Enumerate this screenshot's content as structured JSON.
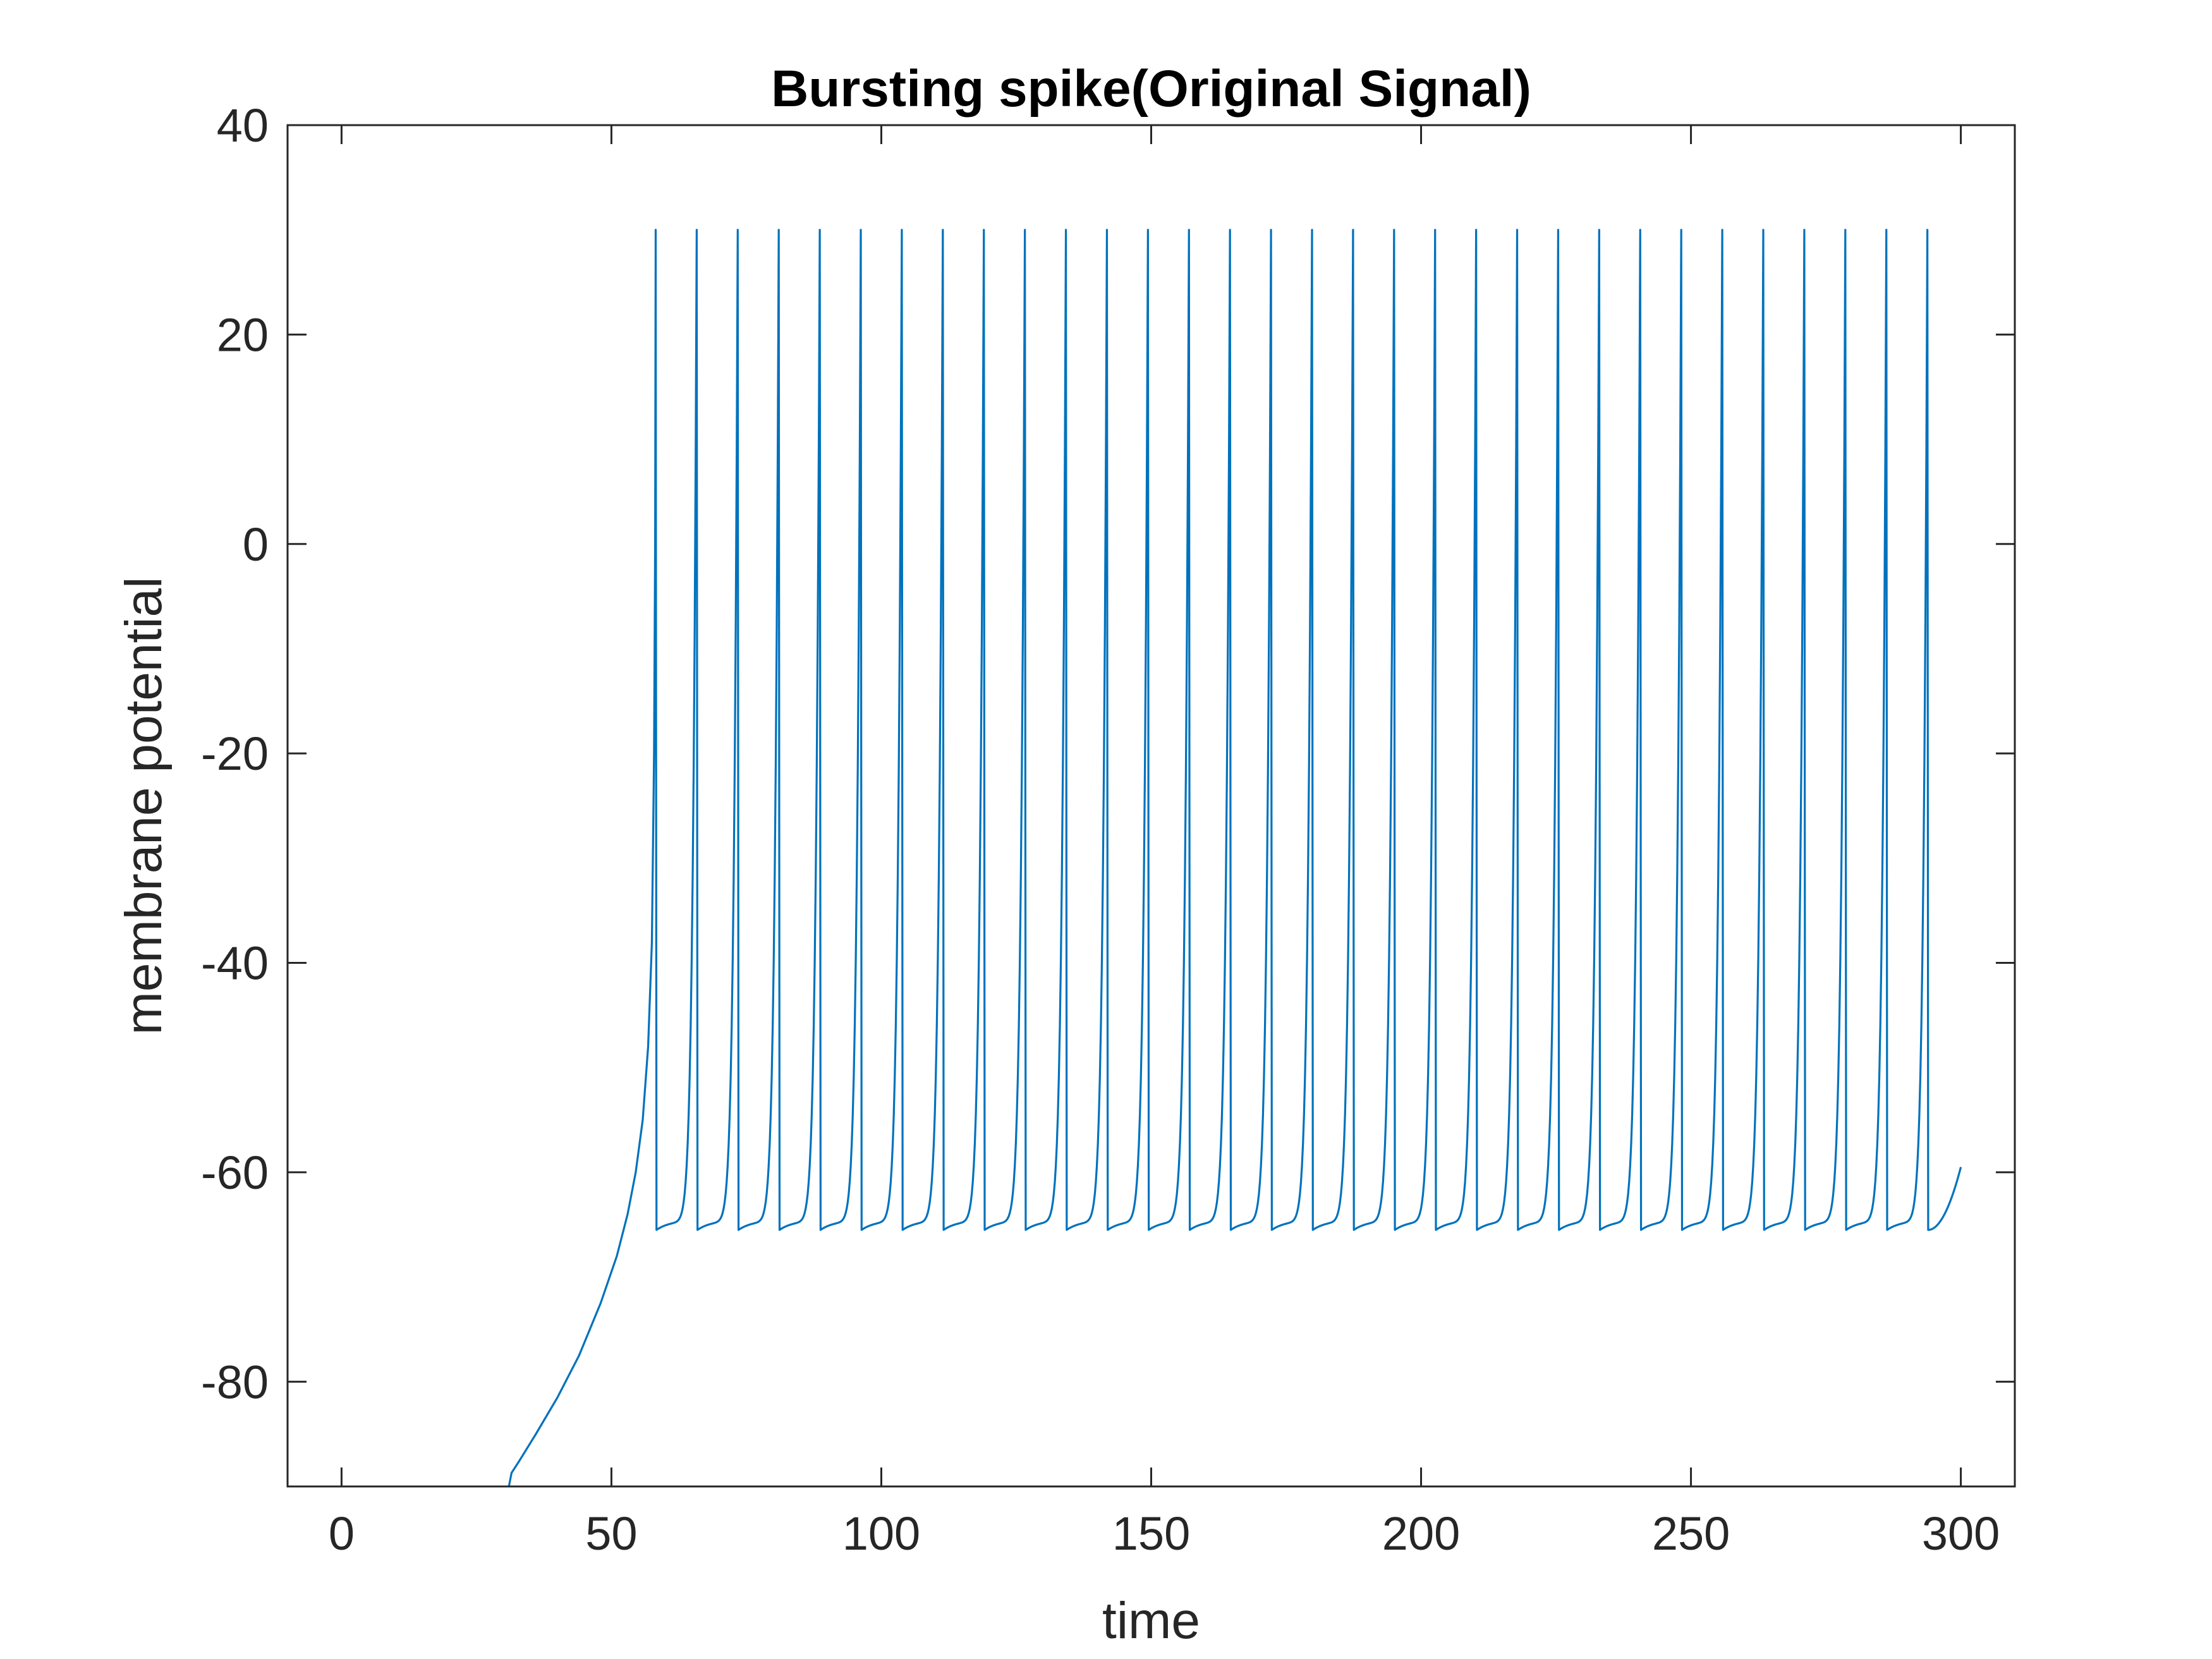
{
  "chart_data": {
    "type": "line",
    "title": "Bursting spike(Original Signal)",
    "xlabel": "time",
    "ylabel": "membrane potential",
    "xlim": [
      -10,
      310
    ],
    "ylim": [
      -90,
      40
    ],
    "x_ticks": [
      0,
      50,
      100,
      150,
      200,
      250,
      300
    ],
    "y_ticks": [
      -80,
      -60,
      -40,
      -20,
      0,
      20,
      40
    ],
    "x_tick_labels": [
      "0",
      "50",
      "100",
      "150",
      "200",
      "250",
      "300"
    ],
    "y_tick_labels": [
      "-80",
      "-60",
      "-40",
      "-20",
      "0",
      "20",
      "40"
    ],
    "grid": false,
    "legend": "none",
    "series": [
      {
        "color": "#0072BD",
        "onset_time": 31,
        "onset_value": -90,
        "spike_peak": 30,
        "reset_value": -65.5,
        "end_time": 300,
        "end_value": -59.5,
        "spike_times": [
          58.2,
          65.8,
          73.4,
          81.0,
          88.6,
          96.2,
          103.8,
          111.4,
          119.0,
          126.6,
          134.2,
          141.8,
          149.4,
          157.0,
          164.6,
          172.2,
          179.8,
          187.4,
          195.0,
          202.6,
          210.2,
          217.8,
          225.4,
          233.0,
          240.6,
          248.2,
          255.8,
          263.4,
          271.0,
          278.6,
          286.2,
          293.8
        ],
        "trace_points": [
          [
            31,
            -90
          ],
          [
            31.5,
            -88.7
          ],
          [
            33,
            -87.5
          ],
          [
            36,
            -85
          ],
          [
            40,
            -81.5
          ],
          [
            44,
            -77.5
          ],
          [
            48,
            -72.5
          ],
          [
            51,
            -68
          ],
          [
            53,
            -64
          ],
          [
            54.5,
            -60
          ],
          [
            55.8,
            -55
          ],
          [
            56.8,
            -48
          ],
          [
            57.5,
            -38
          ],
          [
            57.9,
            -20
          ],
          [
            58.1,
            0
          ],
          [
            58.2,
            30
          ]
        ]
      }
    ]
  }
}
